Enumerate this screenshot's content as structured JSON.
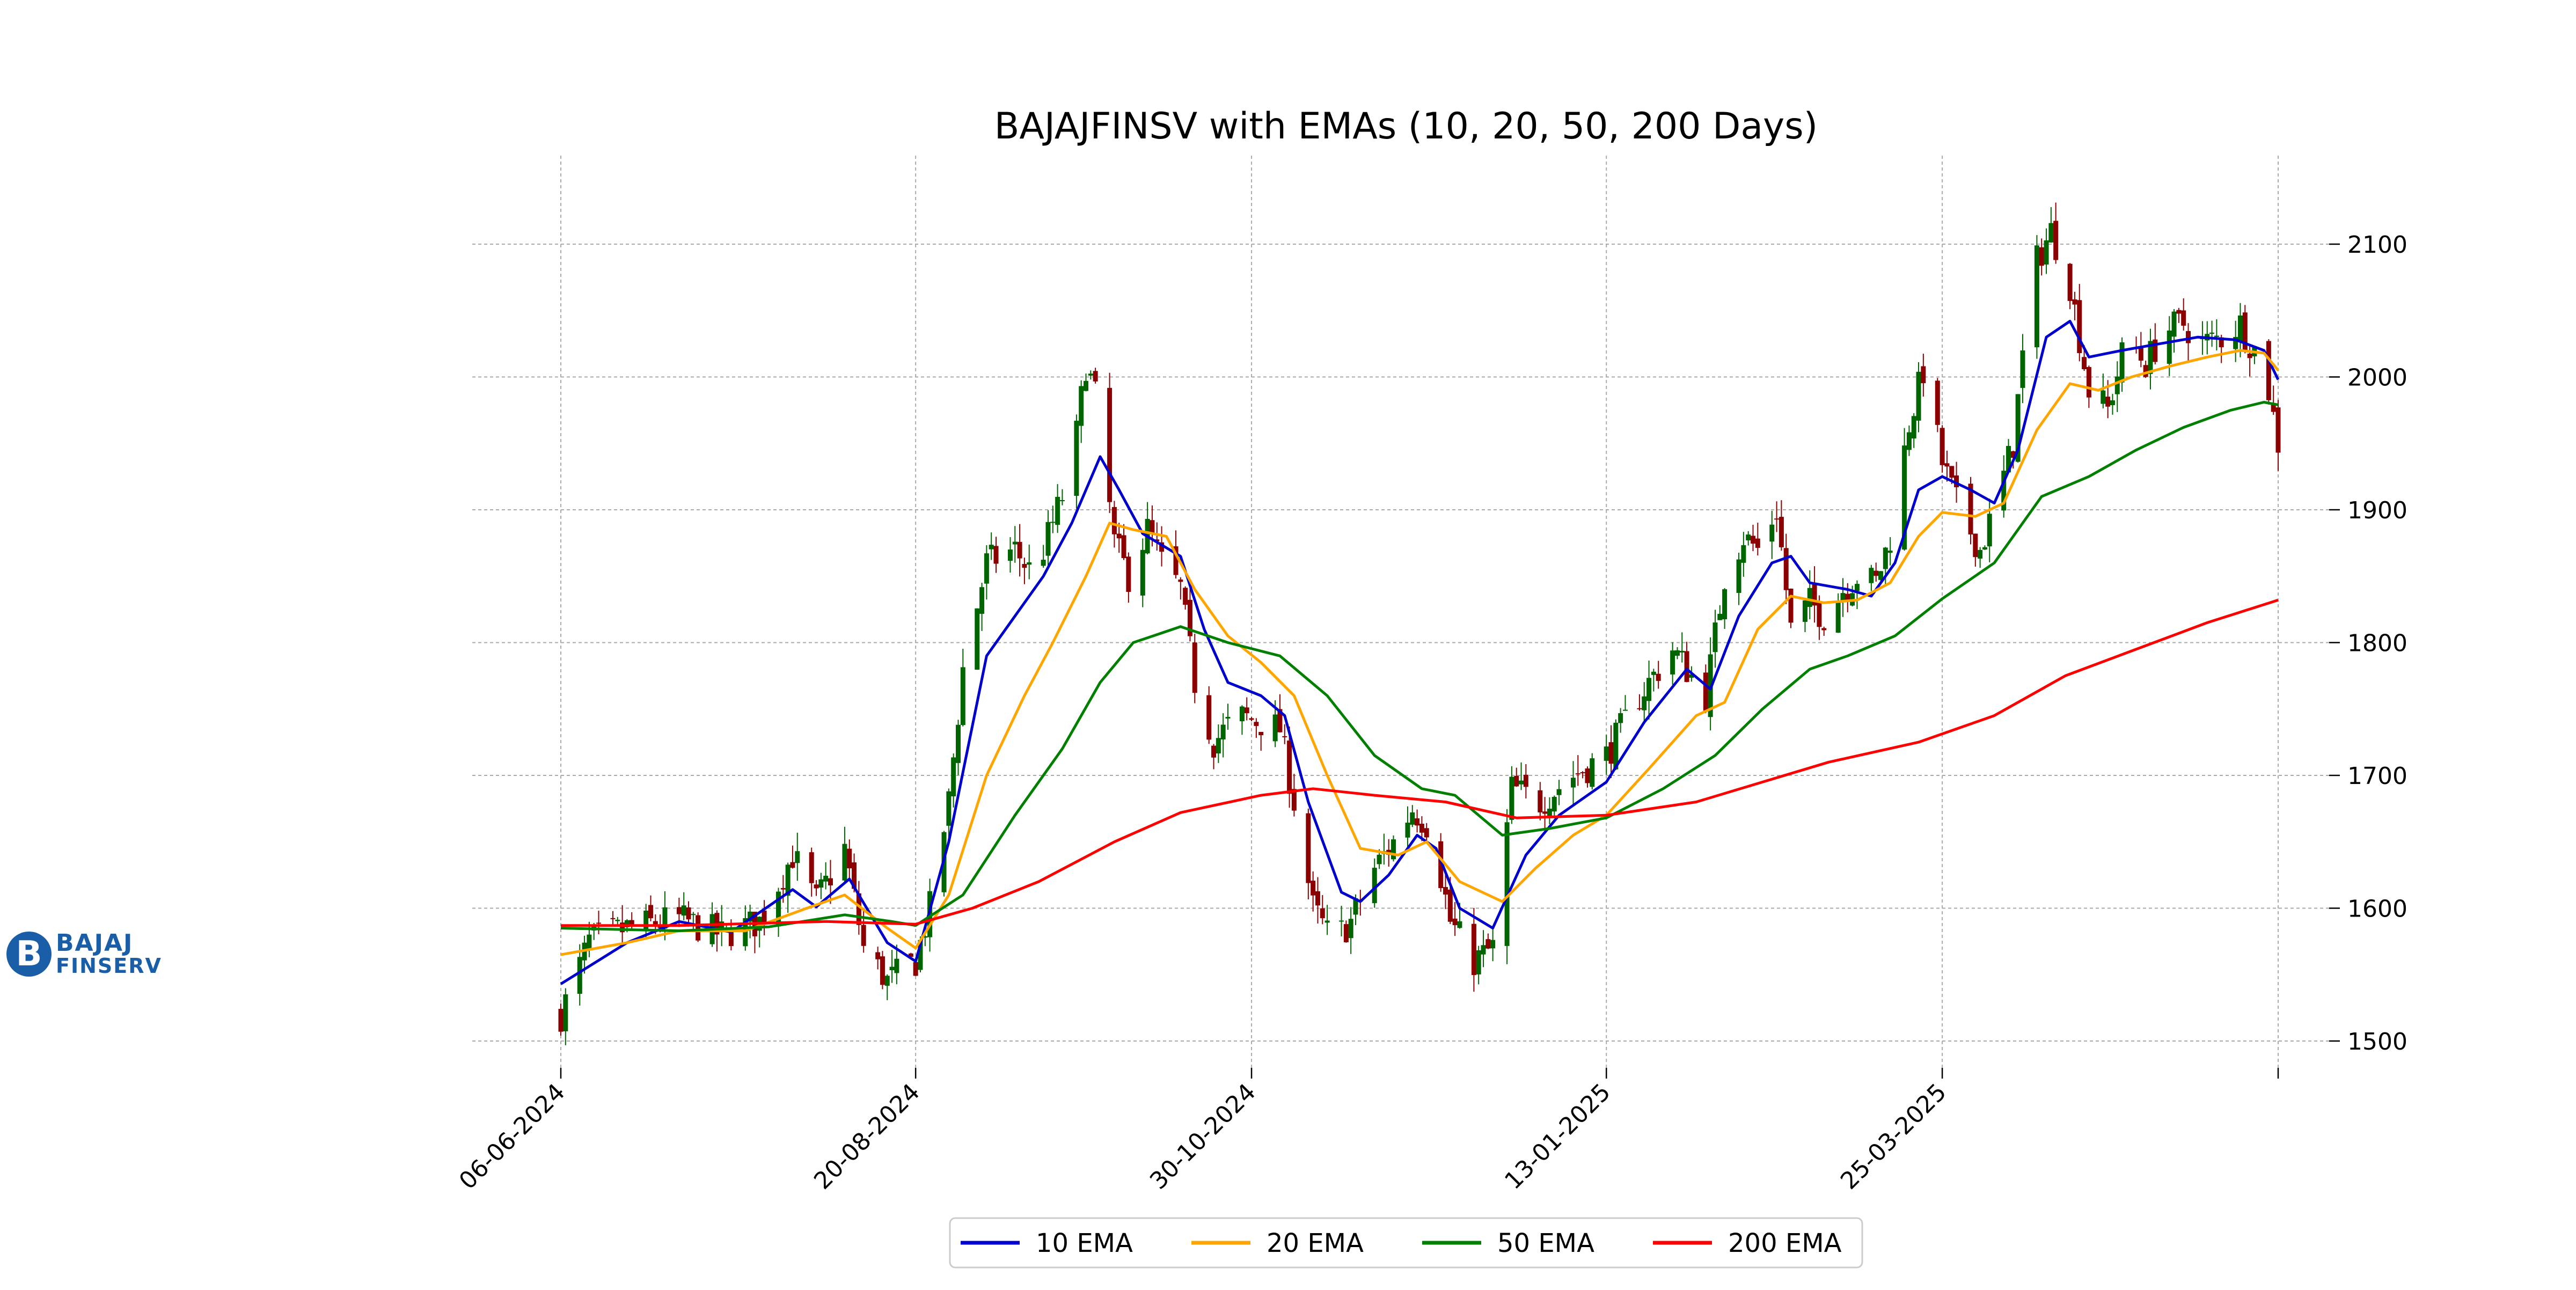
{
  "logo": {
    "line1": "BAJAJ",
    "line2": "FINSERV",
    "color": "#1a5ea8"
  },
  "chart_data": {
    "type": "line",
    "subtype": "candlestick-with-ema-overlays",
    "title": "BAJAJFINSV with EMAs (10, 20, 50, 200 Days)",
    "xlabel": "",
    "ylabel": "",
    "ylim": [
      1480,
      2140
    ],
    "yticks": [
      1500,
      1600,
      1700,
      1800,
      1900,
      2000,
      2100
    ],
    "x_start": "06-06-2024",
    "x_end": "04-06-2025",
    "xticks": [
      "06-06-2024",
      "20-08-2024",
      "30-10-2024",
      "13-01-2025",
      "25-03-2025",
      "04-06-2025"
    ],
    "xtick_labels": [
      "06-06-2024",
      "20-08-2024",
      "30-10-2024",
      "13-01-2025",
      "25-03-2025",
      ""
    ],
    "grid": true,
    "legend": {
      "position": "bottom-center",
      "entries": [
        "10 EMA",
        "20 EMA",
        "50 EMA",
        "200 EMA"
      ]
    },
    "candle_colors": {
      "up": "#006400",
      "down": "#8b0000"
    },
    "price_path": [
      [
        "06-06-2024",
        1520
      ],
      [
        "12-06-2024",
        1575
      ],
      [
        "20-06-2024",
        1585
      ],
      [
        "01-07-2024",
        1592
      ],
      [
        "10-07-2024",
        1580
      ],
      [
        "18-07-2024",
        1590
      ],
      [
        "25-07-2024",
        1640
      ],
      [
        "30-07-2024",
        1605
      ],
      [
        "05-08-2024",
        1645
      ],
      [
        "09-08-2024",
        1570
      ],
      [
        "14-08-2024",
        1545
      ],
      [
        "20-08-2024",
        1560
      ],
      [
        "23-08-2024",
        1600
      ],
      [
        "27-08-2024",
        1680
      ],
      [
        "30-08-2024",
        1780
      ],
      [
        "04-09-2024",
        1860
      ],
      [
        "10-09-2024",
        1870
      ],
      [
        "14-09-2024",
        1850
      ],
      [
        "18-09-2024",
        1890
      ],
      [
        "22-09-2024",
        1930
      ],
      [
        "25-09-2024",
        2010
      ],
      [
        "27-09-2024",
        1985
      ],
      [
        "01-10-2024",
        1875
      ],
      [
        "04-10-2024",
        1850
      ],
      [
        "08-10-2024",
        1885
      ],
      [
        "11-10-2024",
        1860
      ],
      [
        "15-10-2024",
        1840
      ],
      [
        "18-10-2024",
        1770
      ],
      [
        "22-10-2024",
        1725
      ],
      [
        "27-10-2024",
        1745
      ],
      [
        "01-11-2024",
        1740
      ],
      [
        "05-11-2024",
        1735
      ],
      [
        "08-11-2024",
        1680
      ],
      [
        "12-11-2024",
        1600
      ],
      [
        "16-11-2024",
        1575
      ],
      [
        "20-11-2024",
        1590
      ],
      [
        "25-11-2024",
        1630
      ],
      [
        "29-11-2024",
        1650
      ],
      [
        "03-12-2024",
        1675
      ],
      [
        "07-12-2024",
        1660
      ],
      [
        "11-12-2024",
        1590
      ],
      [
        "16-12-2024",
        1560
      ],
      [
        "20-12-2024",
        1570
      ],
      [
        "24-12-2024",
        1690
      ],
      [
        "30-12-2024",
        1680
      ],
      [
        "06-01-2025",
        1700
      ],
      [
        "13-01-2025",
        1715
      ],
      [
        "20-01-2025",
        1760
      ],
      [
        "27-01-2025",
        1795
      ],
      [
        "03-02-2025",
        1760
      ],
      [
        "07-02-2025",
        1850
      ],
      [
        "11-02-2025",
        1880
      ],
      [
        "14-02-2025",
        1870
      ],
      [
        "18-02-2025",
        1900
      ],
      [
        "21-02-2025",
        1810
      ],
      [
        "25-02-2025",
        1830
      ],
      [
        "28-02-2025",
        1820
      ],
      [
        "04-03-2025",
        1840
      ],
      [
        "07-03-2025",
        1850
      ],
      [
        "11-03-2025",
        1845
      ],
      [
        "14-03-2025",
        1880
      ],
      [
        "18-03-2025",
        1965
      ],
      [
        "21-03-2025",
        2005
      ],
      [
        "25-03-2025",
        1935
      ],
      [
        "28-03-2025",
        1905
      ],
      [
        "02-04-2025",
        1870
      ],
      [
        "05-04-2025",
        1900
      ],
      [
        "09-04-2025",
        1950
      ],
      [
        "13-04-2025",
        2080
      ],
      [
        "17-04-2025",
        2110
      ],
      [
        "21-04-2025",
        2070
      ],
      [
        "25-04-2025",
        1990
      ],
      [
        "29-04-2025",
        1975
      ],
      [
        "03-05-2025",
        2030
      ],
      [
        "07-05-2025",
        2010
      ],
      [
        "11-05-2025",
        2035
      ],
      [
        "15-05-2025",
        2040
      ],
      [
        "19-05-2025",
        2025
      ],
      [
        "23-05-2025",
        2030
      ],
      [
        "27-05-2025",
        2040
      ],
      [
        "30-05-2025",
        2020
      ],
      [
        "02-06-2025",
        1990
      ],
      [
        "04-06-2025",
        1950
      ]
    ],
    "series": [
      {
        "name": "10 EMA",
        "color": "#0000cc",
        "points": [
          [
            "06-06-2024",
            1543
          ],
          [
            "20-06-2024",
            1574
          ],
          [
            "01-07-2024",
            1590
          ],
          [
            "12-07-2024",
            1582
          ],
          [
            "25-07-2024",
            1614
          ],
          [
            "30-07-2024",
            1601
          ],
          [
            "06-08-2024",
            1622
          ],
          [
            "14-08-2024",
            1574
          ],
          [
            "20-08-2024",
            1560
          ],
          [
            "27-08-2024",
            1650
          ],
          [
            "04-09-2024",
            1790
          ],
          [
            "10-09-2024",
            1820
          ],
          [
            "16-09-2024",
            1850
          ],
          [
            "22-09-2024",
            1890
          ],
          [
            "28-09-2024",
            1940
          ],
          [
            "02-10-2024",
            1915
          ],
          [
            "07-10-2024",
            1882
          ],
          [
            "15-10-2024",
            1865
          ],
          [
            "20-10-2024",
            1810
          ],
          [
            "25-10-2024",
            1770
          ],
          [
            "01-11-2024",
            1760
          ],
          [
            "06-11-2024",
            1745
          ],
          [
            "11-11-2024",
            1680
          ],
          [
            "18-11-2024",
            1612
          ],
          [
            "22-11-2024",
            1605
          ],
          [
            "28-11-2024",
            1625
          ],
          [
            "04-12-2024",
            1655
          ],
          [
            "08-12-2024",
            1645
          ],
          [
            "13-12-2024",
            1600
          ],
          [
            "20-12-2024",
            1585
          ],
          [
            "27-12-2024",
            1640
          ],
          [
            "03-01-2025",
            1670
          ],
          [
            "13-01-2025",
            1695
          ],
          [
            "21-01-2025",
            1740
          ],
          [
            "30-01-2025",
            1780
          ],
          [
            "04-02-2025",
            1765
          ],
          [
            "10-02-2025",
            1820
          ],
          [
            "17-02-2025",
            1860
          ],
          [
            "21-02-2025",
            1865
          ],
          [
            "25-02-2025",
            1845
          ],
          [
            "05-03-2025",
            1840
          ],
          [
            "10-03-2025",
            1835
          ],
          [
            "15-03-2025",
            1860
          ],
          [
            "20-03-2025",
            1915
          ],
          [
            "25-03-2025",
            1925
          ],
          [
            "31-03-2025",
            1915
          ],
          [
            "05-04-2025",
            1905
          ],
          [
            "10-04-2025",
            1945
          ],
          [
            "16-04-2025",
            2030
          ],
          [
            "21-04-2025",
            2042
          ],
          [
            "25-04-2025",
            2015
          ],
          [
            "02-05-2025",
            2020
          ],
          [
            "10-05-2025",
            2025
          ],
          [
            "18-05-2025",
            2030
          ],
          [
            "26-05-2025",
            2028
          ],
          [
            "01-06-2025",
            2020
          ],
          [
            "04-06-2025",
            1998
          ]
        ]
      },
      {
        "name": "20 EMA",
        "color": "#ffa500",
        "points": [
          [
            "06-06-2024",
            1565
          ],
          [
            "20-06-2024",
            1574
          ],
          [
            "01-07-2024",
            1583
          ],
          [
            "15-07-2024",
            1583
          ],
          [
            "28-07-2024",
            1600
          ],
          [
            "05-08-2024",
            1610
          ],
          [
            "14-08-2024",
            1585
          ],
          [
            "20-08-2024",
            1570
          ],
          [
            "27-08-2024",
            1610
          ],
          [
            "04-09-2024",
            1700
          ],
          [
            "12-09-2024",
            1760
          ],
          [
            "18-09-2024",
            1800
          ],
          [
            "25-09-2024",
            1850
          ],
          [
            "30-09-2024",
            1890
          ],
          [
            "05-10-2024",
            1885
          ],
          [
            "12-10-2024",
            1880
          ],
          [
            "18-10-2024",
            1840
          ],
          [
            "25-10-2024",
            1805
          ],
          [
            "01-11-2024",
            1785
          ],
          [
            "08-11-2024",
            1760
          ],
          [
            "15-11-2024",
            1700
          ],
          [
            "22-11-2024",
            1645
          ],
          [
            "30-11-2024",
            1640
          ],
          [
            "06-12-2024",
            1650
          ],
          [
            "13-12-2024",
            1620
          ],
          [
            "22-12-2024",
            1605
          ],
          [
            "29-12-2024",
            1630
          ],
          [
            "06-01-2025",
            1655
          ],
          [
            "13-01-2025",
            1670
          ],
          [
            "22-01-2025",
            1705
          ],
          [
            "01-02-2025",
            1745
          ],
          [
            "07-02-2025",
            1755
          ],
          [
            "14-02-2025",
            1810
          ],
          [
            "21-02-2025",
            1835
          ],
          [
            "28-02-2025",
            1830
          ],
          [
            "07-03-2025",
            1832
          ],
          [
            "14-03-2025",
            1845
          ],
          [
            "20-03-2025",
            1880
          ],
          [
            "25-03-2025",
            1898
          ],
          [
            "01-04-2025",
            1895
          ],
          [
            "07-04-2025",
            1905
          ],
          [
            "14-04-2025",
            1960
          ],
          [
            "21-04-2025",
            1995
          ],
          [
            "27-04-2025",
            1990
          ],
          [
            "04-05-2025",
            2000
          ],
          [
            "12-05-2025",
            2008
          ],
          [
            "20-05-2025",
            2015
          ],
          [
            "27-05-2025",
            2020
          ],
          [
            "01-06-2025",
            2018
          ],
          [
            "04-06-2025",
            2005
          ]
        ]
      },
      {
        "name": "50 EMA",
        "color": "#007f00",
        "points": [
          [
            "06-06-2024",
            1585
          ],
          [
            "01-07-2024",
            1583
          ],
          [
            "20-07-2024",
            1586
          ],
          [
            "05-08-2024",
            1595
          ],
          [
            "15-08-2024",
            1590
          ],
          [
            "20-08-2024",
            1587
          ],
          [
            "30-08-2024",
            1610
          ],
          [
            "10-09-2024",
            1670
          ],
          [
            "20-09-2024",
            1720
          ],
          [
            "28-09-2024",
            1770
          ],
          [
            "05-10-2024",
            1800
          ],
          [
            "15-10-2024",
            1812
          ],
          [
            "25-10-2024",
            1800
          ],
          [
            "05-11-2024",
            1790
          ],
          [
            "15-11-2024",
            1760
          ],
          [
            "25-11-2024",
            1715
          ],
          [
            "05-12-2024",
            1690
          ],
          [
            "12-12-2024",
            1685
          ],
          [
            "22-12-2024",
            1655
          ],
          [
            "01-01-2025",
            1660
          ],
          [
            "13-01-2025",
            1668
          ],
          [
            "25-01-2025",
            1690
          ],
          [
            "05-02-2025",
            1715
          ],
          [
            "15-02-2025",
            1750
          ],
          [
            "25-02-2025",
            1780
          ],
          [
            "05-03-2025",
            1790
          ],
          [
            "15-03-2025",
            1805
          ],
          [
            "25-03-2025",
            1833
          ],
          [
            "05-04-2025",
            1860
          ],
          [
            "15-04-2025",
            1910
          ],
          [
            "25-04-2025",
            1925
          ],
          [
            "05-05-2025",
            1945
          ],
          [
            "15-05-2025",
            1962
          ],
          [
            "25-05-2025",
            1975
          ],
          [
            "01-06-2025",
            1981
          ],
          [
            "04-06-2025",
            1979
          ]
        ]
      },
      {
        "name": "200 EMA",
        "color": "#ff0000",
        "points": [
          [
            "06-06-2024",
            1587
          ],
          [
            "01-07-2024",
            1587
          ],
          [
            "01-08-2024",
            1590
          ],
          [
            "20-08-2024",
            1588
          ],
          [
            "01-09-2024",
            1600
          ],
          [
            "15-09-2024",
            1620
          ],
          [
            "01-10-2024",
            1650
          ],
          [
            "15-10-2024",
            1672
          ],
          [
            "01-11-2024",
            1685
          ],
          [
            "12-11-2024",
            1690
          ],
          [
            "25-11-2024",
            1685
          ],
          [
            "10-12-2024",
            1680
          ],
          [
            "25-12-2024",
            1668
          ],
          [
            "13-01-2025",
            1670
          ],
          [
            "01-02-2025",
            1680
          ],
          [
            "15-02-2025",
            1695
          ],
          [
            "01-03-2025",
            1710
          ],
          [
            "20-03-2025",
            1725
          ],
          [
            "05-04-2025",
            1745
          ],
          [
            "20-04-2025",
            1775
          ],
          [
            "05-05-2025",
            1795
          ],
          [
            "20-05-2025",
            1815
          ],
          [
            "04-06-2025",
            1832
          ]
        ]
      }
    ]
  }
}
